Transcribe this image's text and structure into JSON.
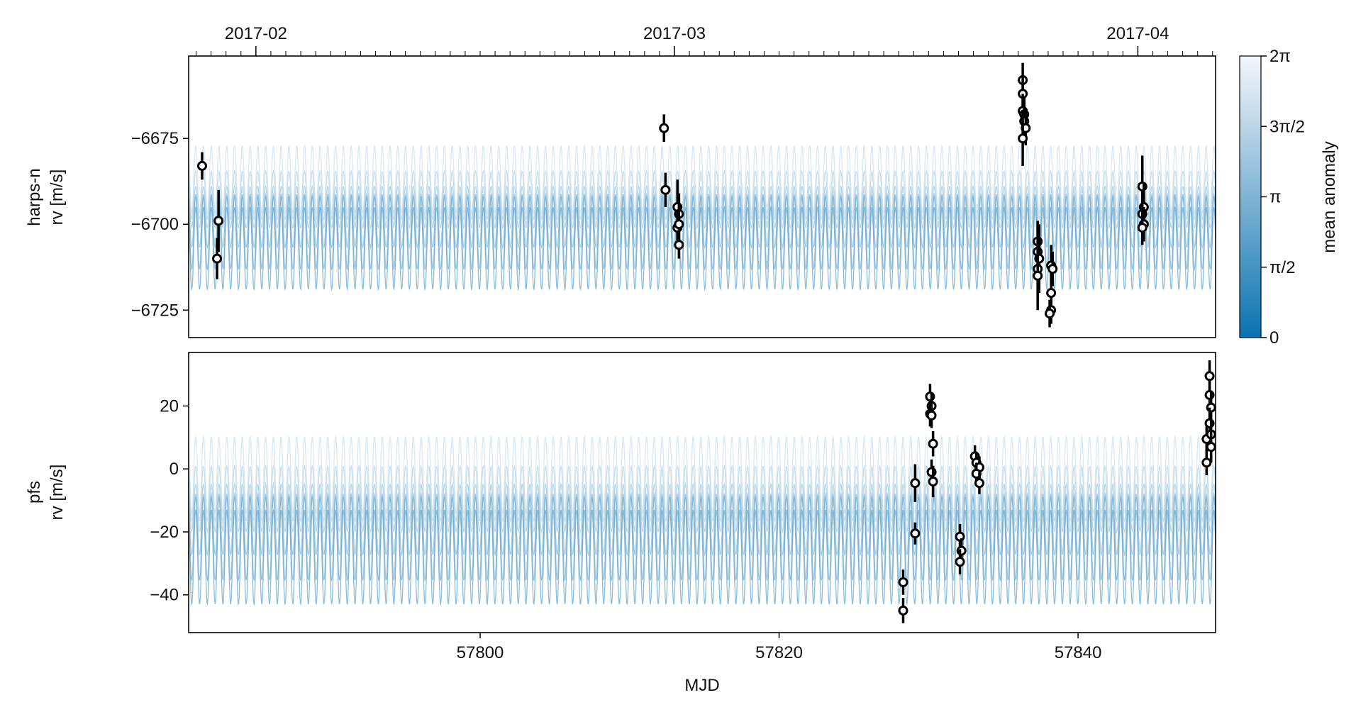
{
  "chart_data": {
    "type": "scatter",
    "xlabel": "MJD",
    "xlim": [
      57780.5,
      57849.2
    ],
    "x_ticks": [
      57800,
      57820,
      57840
    ],
    "date_ticks": [
      {
        "mjd": 57785,
        "label": "2017-02"
      },
      {
        "mjd": 57813,
        "label": "2017-03"
      },
      {
        "mjd": 57844,
        "label": "2017-04"
      }
    ],
    "colorbar": {
      "label": "mean anomaly",
      "ticks": [
        "0",
        "π/2",
        "π",
        "3π/2",
        "2π"
      ],
      "colors": [
        "#0a73b0",
        "#f4f7fa"
      ]
    },
    "panels": [
      {
        "ylabel": [
          "harps-n",
          "rv [m/s]"
        ],
        "ylim": [
          -6733,
          -6651
        ],
        "y_ticks": [
          -6675,
          -6700,
          -6725
        ],
        "y_tick_labels": [
          "−6675",
          "−6700",
          "−6725"
        ],
        "model_band": {
          "center": -6697,
          "amplitude": 12,
          "spread": 10
        },
        "points": [
          {
            "x": 57781.4,
            "y": -6683,
            "err": 4
          },
          {
            "x": 57782.5,
            "y": -6699,
            "err": 9
          },
          {
            "x": 57782.4,
            "y": -6710,
            "err": 6
          },
          {
            "x": 57812.3,
            "y": -6672,
            "err": 4
          },
          {
            "x": 57812.4,
            "y": -6690,
            "err": 5
          },
          {
            "x": 57813.2,
            "y": -6695,
            "err": 8
          },
          {
            "x": 57813.3,
            "y": -6697,
            "err": 6
          },
          {
            "x": 57813.2,
            "y": -6701,
            "err": 5
          },
          {
            "x": 57813.3,
            "y": -6700,
            "err": 5
          },
          {
            "x": 57813.3,
            "y": -6706,
            "err": 4
          },
          {
            "x": 57836.3,
            "y": -6658,
            "err": 5
          },
          {
            "x": 57836.3,
            "y": -6662,
            "err": 5
          },
          {
            "x": 57836.3,
            "y": -6667,
            "err": 5
          },
          {
            "x": 57836.4,
            "y": -6668,
            "err": 5
          },
          {
            "x": 57836.4,
            "y": -6670,
            "err": 5
          },
          {
            "x": 57836.5,
            "y": -6672,
            "err": 5
          },
          {
            "x": 57836.3,
            "y": -6675,
            "err": 8
          },
          {
            "x": 57837.3,
            "y": -6705,
            "err": 6
          },
          {
            "x": 57837.3,
            "y": -6708,
            "err": 8
          },
          {
            "x": 57837.4,
            "y": -6710,
            "err": 10
          },
          {
            "x": 57837.3,
            "y": -6713,
            "err": 8
          },
          {
            "x": 57837.3,
            "y": -6715,
            "err": 10
          },
          {
            "x": 57838.2,
            "y": -6712,
            "err": 6
          },
          {
            "x": 57838.3,
            "y": -6713,
            "err": 5
          },
          {
            "x": 57838.2,
            "y": -6720,
            "err": 6
          },
          {
            "x": 57838.2,
            "y": -6725,
            "err": 4
          },
          {
            "x": 57838.1,
            "y": -6726,
            "err": 4
          },
          {
            "x": 57844.3,
            "y": -6689,
            "err": 9
          },
          {
            "x": 57844.4,
            "y": -6695,
            "err": 7
          },
          {
            "x": 57844.3,
            "y": -6697,
            "err": 5
          },
          {
            "x": 57844.4,
            "y": -6700,
            "err": 5
          },
          {
            "x": 57844.3,
            "y": -6701,
            "err": 5
          }
        ]
      },
      {
        "ylabel": [
          "pfs",
          "rv [m/s]"
        ],
        "ylim": [
          -52,
          37
        ],
        "y_ticks": [
          20,
          0,
          -20,
          -40
        ],
        "y_tick_labels": [
          "20",
          "0",
          "−20",
          "−40"
        ],
        "model_band": {
          "center": -15,
          "amplitude": 15,
          "spread": 13
        },
        "points": [
          {
            "x": 57828.3,
            "y": -36,
            "err": 4
          },
          {
            "x": 57828.3,
            "y": -45,
            "err": 4
          },
          {
            "x": 57829.1,
            "y": -4.5,
            "err": 6
          },
          {
            "x": 57829.1,
            "y": -20.5,
            "err": 3.5
          },
          {
            "x": 57830.1,
            "y": 23,
            "err": 4
          },
          {
            "x": 57830.2,
            "y": 20,
            "err": 4
          },
          {
            "x": 57830.1,
            "y": 17.5,
            "err": 4
          },
          {
            "x": 57830.2,
            "y": 17,
            "err": 4
          },
          {
            "x": 57830.3,
            "y": 8,
            "err": 4
          },
          {
            "x": 57830.2,
            "y": -1,
            "err": 4
          },
          {
            "x": 57830.3,
            "y": -4,
            "err": 5
          },
          {
            "x": 57832.1,
            "y": -21.5,
            "err": 4
          },
          {
            "x": 57832.2,
            "y": -26,
            "err": 4
          },
          {
            "x": 57832.1,
            "y": -29.5,
            "err": 4
          },
          {
            "x": 57833.1,
            "y": 4,
            "err": 3.5
          },
          {
            "x": 57833.2,
            "y": 2,
            "err": 3.5
          },
          {
            "x": 57833.4,
            "y": 0.5,
            "err": 3.5
          },
          {
            "x": 57833.2,
            "y": -1.5,
            "err": 3.5
          },
          {
            "x": 57833.4,
            "y": -4.5,
            "err": 3.5
          },
          {
            "x": 57848.6,
            "y": 9.5,
            "err": 4
          },
          {
            "x": 57848.6,
            "y": 2,
            "err": 4
          },
          {
            "x": 57848.8,
            "y": 29.5,
            "err": 5
          },
          {
            "x": 57848.8,
            "y": 23.5,
            "err": 5
          },
          {
            "x": 57848.9,
            "y": 19.5,
            "err": 5
          },
          {
            "x": 57848.8,
            "y": 14.5,
            "err": 5
          },
          {
            "x": 57848.9,
            "y": 11,
            "err": 5
          },
          {
            "x": 57848.9,
            "y": 7,
            "err": 5
          }
        ]
      }
    ]
  }
}
